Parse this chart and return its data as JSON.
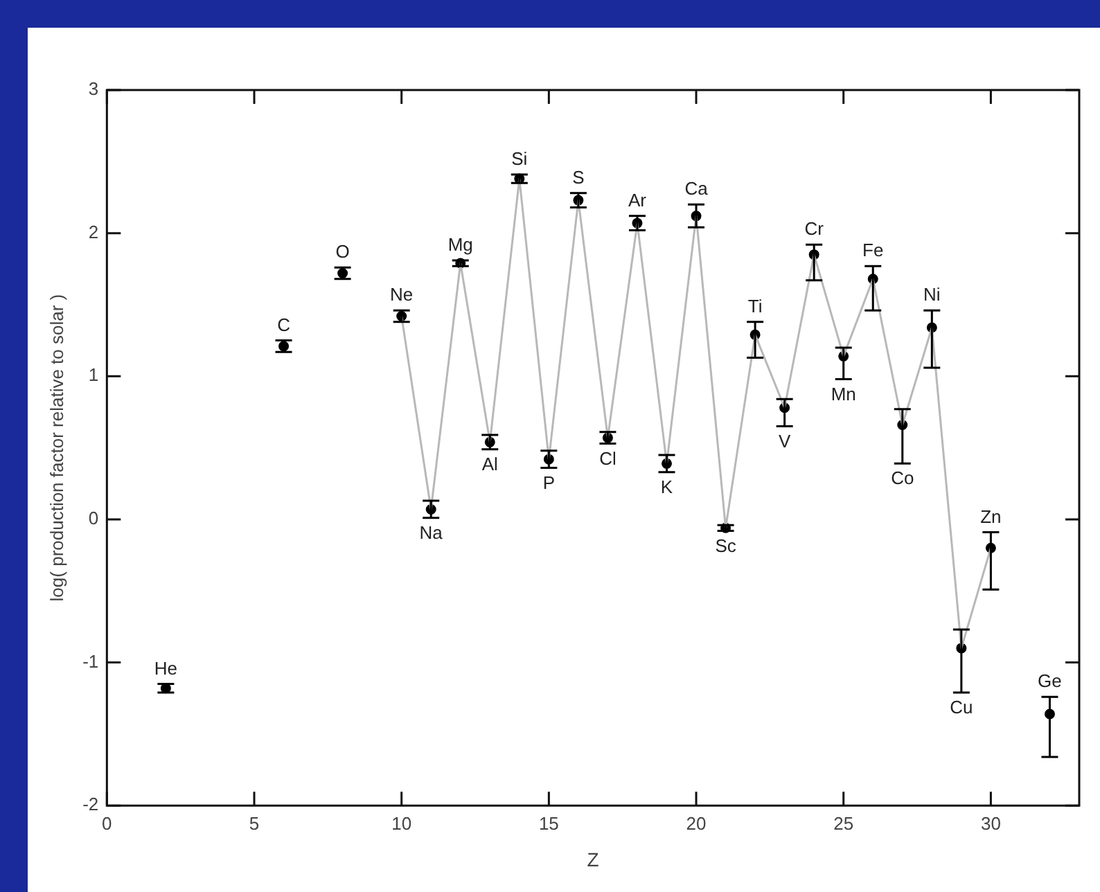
{
  "chart_data": {
    "type": "line",
    "xlabel": "Z",
    "ylabel": "log( production factor relative to solar )",
    "x": [
      2,
      3,
      4,
      5,
      6,
      7,
      8,
      9,
      10,
      11,
      12,
      13,
      14,
      15,
      16,
      17,
      18,
      19,
      20,
      21,
      22,
      23,
      24,
      25,
      26,
      27,
      28,
      29,
      30,
      31,
      32
    ],
    "series": [
      {
        "color": "#b8b8b8",
        "marker": "none",
        "values": [
          null,
          null,
          null,
          null,
          null,
          null,
          null,
          null,
          1.42,
          0.07,
          1.79,
          0.54,
          2.38,
          0.42,
          2.23,
          0.57,
          2.07,
          0.39,
          2.12,
          -0.06,
          1.29,
          0.78,
          1.85,
          1.14,
          1.68,
          0.66,
          1.34,
          -0.9,
          -0.2,
          null,
          null
        ]
      },
      {
        "type": "scatter",
        "color": "#000000",
        "values": [
          -1.18,
          null,
          null,
          null,
          1.21,
          null,
          1.72,
          null,
          1.42,
          0.07,
          1.79,
          0.54,
          2.38,
          0.42,
          2.23,
          0.57,
          2.07,
          0.39,
          2.12,
          -0.06,
          1.29,
          0.78,
          1.85,
          1.14,
          1.68,
          0.66,
          1.34,
          -0.9,
          -0.2,
          null,
          -1.36
        ],
        "errors": [
          0.03,
          null,
          null,
          null,
          0.04,
          null,
          0.04,
          null,
          0.04,
          0.06,
          0.02,
          0.05,
          0.03,
          0.06,
          0.05,
          0.04,
          0.05,
          0.06,
          0.08,
          0.02,
          [
            1.13,
            1.38
          ],
          [
            0.65,
            0.84
          ],
          [
            1.67,
            1.92
          ],
          [
            0.98,
            1.2
          ],
          [
            1.46,
            1.77
          ],
          [
            0.39,
            0.77
          ],
          [
            1.06,
            1.46
          ],
          [
            -1.21,
            -0.77
          ],
          [
            -0.49,
            -0.09
          ],
          null,
          [
            -1.66,
            -1.24
          ]
        ]
      }
    ],
    "marker": "circle",
    "line_style": "solid",
    "xlim": [
      0,
      33
    ],
    "xticks": [
      0,
      5,
      10,
      15,
      20,
      25,
      30
    ],
    "ylim": [
      -2,
      3
    ],
    "yticks": [
      -2,
      -1,
      0,
      1,
      2,
      3
    ],
    "grid": false,
    "annotations": [
      {
        "text": "He",
        "x": 2,
        "y": -1.18
      },
      {
        "text": "C",
        "x": 6,
        "y": 1.21
      },
      {
        "text": "O",
        "x": 8,
        "y": 1.72
      },
      {
        "text": "Ne",
        "x": 10,
        "y": 1.42
      },
      {
        "text": "Na",
        "x": 11,
        "y": 0.07
      },
      {
        "text": "Mg",
        "x": 12,
        "y": 1.79
      },
      {
        "text": "Al",
        "x": 13,
        "y": 0.54
      },
      {
        "text": "Si",
        "x": 14,
        "y": 2.38
      },
      {
        "text": "P",
        "x": 15,
        "y": 0.42
      },
      {
        "text": "S",
        "x": 16,
        "y": 2.23
      },
      {
        "text": "Cl",
        "x": 17,
        "y": 0.57
      },
      {
        "text": "Ar",
        "x": 18,
        "y": 2.07
      },
      {
        "text": "K",
        "x": 19,
        "y": 0.39
      },
      {
        "text": "Ca",
        "x": 20,
        "y": 2.12
      },
      {
        "text": "Sc",
        "x": 21,
        "y": -0.06
      },
      {
        "text": "Ti",
        "x": 22,
        "y": 1.29
      },
      {
        "text": "V",
        "x": 23,
        "y": 0.78
      },
      {
        "text": "Cr",
        "x": 24,
        "y": 1.85
      },
      {
        "text": "Mn",
        "x": 25,
        "y": 1.14
      },
      {
        "text": "Fe",
        "x": 26,
        "y": 1.68
      },
      {
        "text": "Co",
        "x": 27,
        "y": 0.66
      },
      {
        "text": "Ni",
        "x": 28,
        "y": 1.34
      },
      {
        "text": "Cu",
        "x": 29,
        "y": -0.9
      },
      {
        "text": "Zn",
        "x": 30,
        "y": -0.2
      },
      {
        "text": "Ge",
        "x": 32,
        "y": -1.36
      }
    ]
  }
}
